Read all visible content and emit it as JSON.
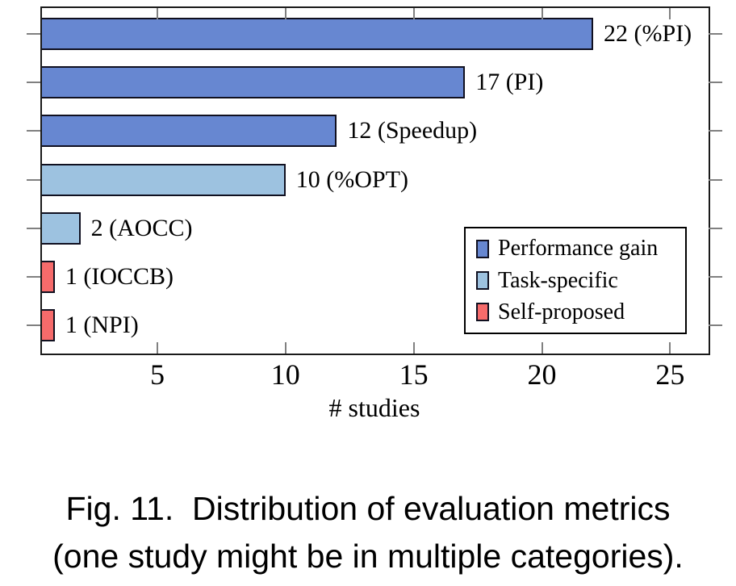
{
  "chart_data": {
    "type": "bar",
    "orientation": "horizontal",
    "xlabel": "# studies",
    "xlim": [
      0.5,
      26.5
    ],
    "xticks": [
      5,
      10,
      15,
      20,
      25
    ],
    "grid": false,
    "bars": [
      {
        "value": 22,
        "label": "22 (%PI)",
        "category": "Performance gain"
      },
      {
        "value": 17,
        "label": "17 (PI)",
        "category": "Performance gain"
      },
      {
        "value": 12,
        "label": "12 (Speedup)",
        "category": "Performance gain"
      },
      {
        "value": 10,
        "label": "10 (%OPT)",
        "category": "Task-specific"
      },
      {
        "value": 2,
        "label": "2 (AOCC)",
        "category": "Task-specific"
      },
      {
        "value": 1,
        "label": "1 (IOCCB)",
        "category": "Self-proposed"
      },
      {
        "value": 1,
        "label": "1 (NPI)",
        "category": "Self-proposed"
      }
    ],
    "legend": [
      {
        "label": "Performance gain",
        "color": "#6787D1"
      },
      {
        "label": "Task-specific",
        "color": "#9DC2E0"
      },
      {
        "label": "Self-proposed",
        "color": "#F66B6B"
      }
    ],
    "legend_position": "bottom right"
  },
  "caption": {
    "line1": "Fig. 11.  Distribution of evaluation metrics",
    "line2": "(one study might be in multiple categories)."
  },
  "colors": {
    "bar_border": "#101020",
    "axis_frame": "#1a1a1a",
    "tick": "#808080",
    "background": "#ffffff",
    "text": "#000000"
  }
}
